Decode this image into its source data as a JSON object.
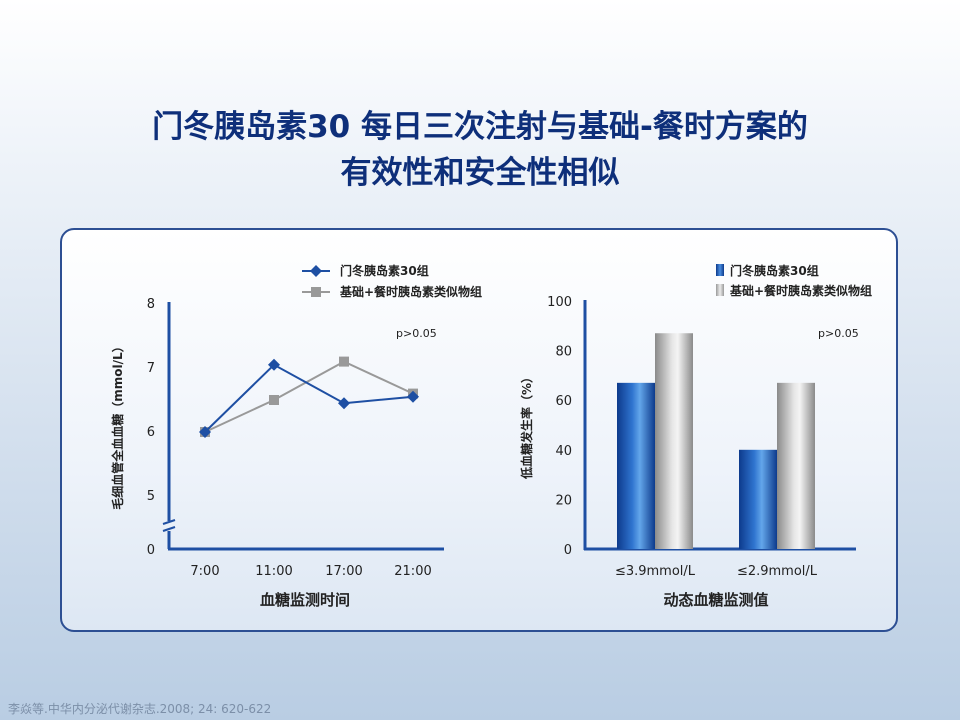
{
  "title": {
    "line1": "门冬胰岛素30 每日三次注射与基础-餐时方案的",
    "line2": "有效性和安全性相似"
  },
  "colors": {
    "title": "#0e2f7a",
    "series_a": "#1e4fa3",
    "series_b": "#999999",
    "axis": "#1e4fa3",
    "panel_border": "#2d4f93"
  },
  "citation": "李焱等.中华内分泌代谢杂志.2008; 24: 620-622",
  "chart_data": [
    {
      "type": "line",
      "x": [
        "7:00",
        "11:00",
        "17:00",
        "21:00"
      ],
      "series": [
        {
          "name": "门冬胰岛素30组",
          "values": [
            6.0,
            7.05,
            6.45,
            6.55
          ],
          "marker": "diamond"
        },
        {
          "name": "基础+餐时胰岛素类似物组",
          "values": [
            6.0,
            6.5,
            7.1,
            6.6
          ],
          "marker": "square"
        }
      ],
      "xlabel": "血糖监测时间",
      "ylabel": "毛细血管全血血糖（mmol/L）",
      "yticks": [
        "0",
        "5",
        "6",
        "7",
        "8"
      ],
      "ylim": [
        5,
        8
      ],
      "axis_break": true,
      "annotation": "p>0.05",
      "legend_position": "top-right",
      "grid": false
    },
    {
      "type": "bar",
      "categories": [
        "≤3.9mmol/L",
        "≤2.9mmol/L"
      ],
      "series": [
        {
          "name": "门冬胰岛素30组",
          "values": [
            67,
            40
          ]
        },
        {
          "name": "基础+餐时胰岛素类似物组",
          "values": [
            87,
            67
          ]
        }
      ],
      "xlabel": "动态血糖监测值",
      "ylabel": "低血糖发生率（%）",
      "yticks": [
        "0",
        "20",
        "40",
        "60",
        "80",
        "100"
      ],
      "ylim": [
        0,
        100
      ],
      "annotation": "p>0.05",
      "legend_position": "top-right",
      "grid": false
    }
  ]
}
